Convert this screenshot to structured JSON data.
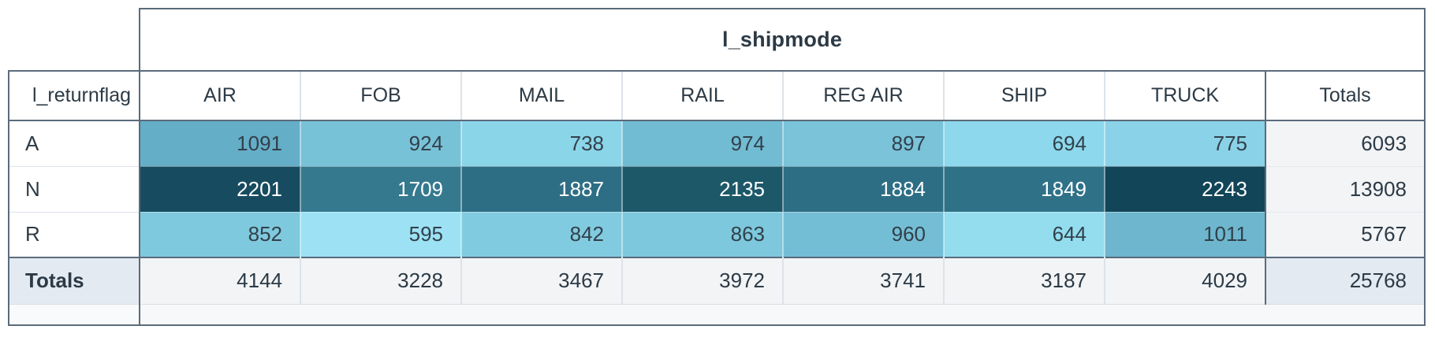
{
  "labels": {
    "totals": "Totals"
  },
  "theme": {
    "border-dark": "#5a6b7c",
    "border-light": "#dde3e9",
    "text-main": "#2c3a45",
    "table-bg": "#ffffff",
    "totals-header-bg": "#e3eaf2",
    "totals-cell-bg": "#f2f4f6",
    "strip-left-bg": "#f9fafb",
    "strip-right-bg": "#f7f8f9",
    "cell-text-dark": "#32404b",
    "cell-text-light": "#ffffff"
  },
  "chart_data": {
    "type": "table",
    "subtype": "pivot-table-heatmap",
    "x_dimension": "l_shipmode",
    "y_dimension": "l_returnflag",
    "columns": [
      "AIR",
      "FOB",
      "MAIL",
      "RAIL",
      "REG AIR",
      "SHIP",
      "TRUCK"
    ],
    "rows": [
      "A",
      "N",
      "R"
    ],
    "values": [
      [
        1091,
        924,
        738,
        974,
        897,
        694,
        775
      ],
      [
        2201,
        1709,
        1887,
        2135,
        1884,
        1849,
        2243
      ],
      [
        852,
        595,
        842,
        863,
        960,
        644,
        1011
      ]
    ],
    "row_totals": [
      6093,
      13908,
      5767
    ],
    "column_totals": [
      4144,
      3228,
      3467,
      3972,
      3741,
      3187,
      4029
    ],
    "grand_total": 25768,
    "cell_colors": [
      [
        "#64aec7",
        "#78c2d8",
        "#8bd5e9",
        "#72bcd3",
        "#7ac3d9",
        "#8dd8ec",
        "#8ad2e7"
      ],
      [
        "#174c60",
        "#35798f",
        "#2d6e85",
        "#1d5869",
        "#2d6e85",
        "#2f7288",
        "#124558"
      ],
      [
        "#7fc9de",
        "#9ce2f4",
        "#81cbe0",
        "#7ec8dd",
        "#74bed5",
        "#93ddef",
        "#6db6ce"
      ]
    ],
    "heat_scale": {
      "min_value": 595,
      "max_value": 2243,
      "min_color": "#9ce2f4",
      "max_color": "#124558"
    }
  }
}
